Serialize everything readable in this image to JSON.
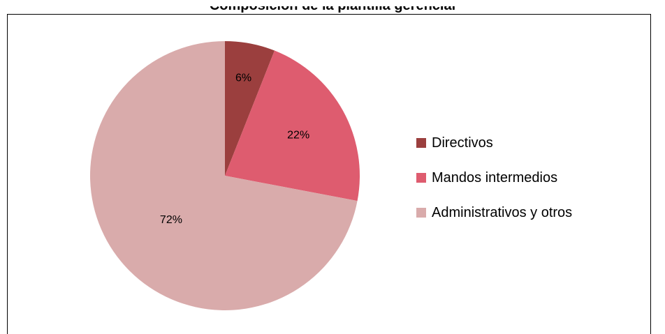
{
  "chart_data": {
    "type": "pie",
    "title": "Composición de la plantilla gerencial",
    "slices": [
      {
        "name": "Directivos",
        "value": 6,
        "label": "6%",
        "color": "#9b3f3e"
      },
      {
        "name": "Mandos intermedios",
        "value": 22,
        "label": "22%",
        "color": "#de5c6f"
      },
      {
        "name": "Administrativos y otros",
        "value": 72,
        "label": "72%",
        "color": "#d9abab"
      }
    ],
    "legend_position": "right"
  }
}
